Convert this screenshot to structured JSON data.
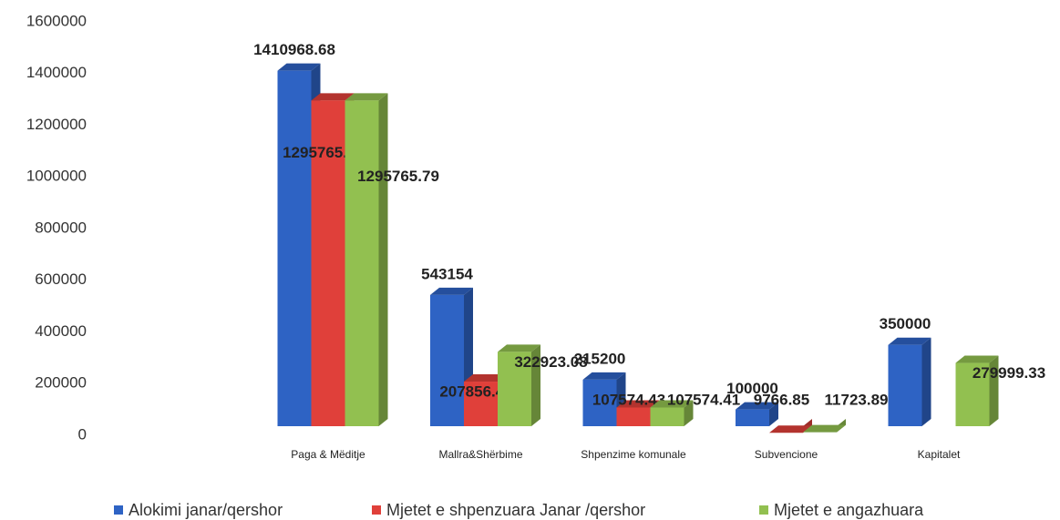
{
  "chart_data": {
    "type": "bar3d",
    "categories": [
      "Paga & Mëditje",
      "Mallra&Shërbime",
      "Shpenzime komunale",
      "Subvencione",
      "Kapitalet"
    ],
    "series": [
      {
        "name": "Alokimi janar/qershor",
        "color": "#2e63c4",
        "values": [
          1410968.68,
          543154,
          215200,
          100000,
          350000
        ]
      },
      {
        "name": "Mjetet e shpenzuara Janar /qershor",
        "color": "#e0403a",
        "values": [
          1295765.79,
          207856.43,
          107574.43,
          9766.85,
          null
        ]
      },
      {
        "name": "Mjetet e angazhuara",
        "color": "#92c050",
        "values": [
          1295765.79,
          322923.08,
          107574.41,
          11723.89,
          279999.33
        ]
      }
    ],
    "ylim": [
      0,
      1600000
    ],
    "yticks": [
      0,
      200000,
      400000,
      600000,
      800000,
      1000000,
      1200000,
      1400000,
      1600000
    ],
    "grid": false,
    "legend": "bottom"
  }
}
